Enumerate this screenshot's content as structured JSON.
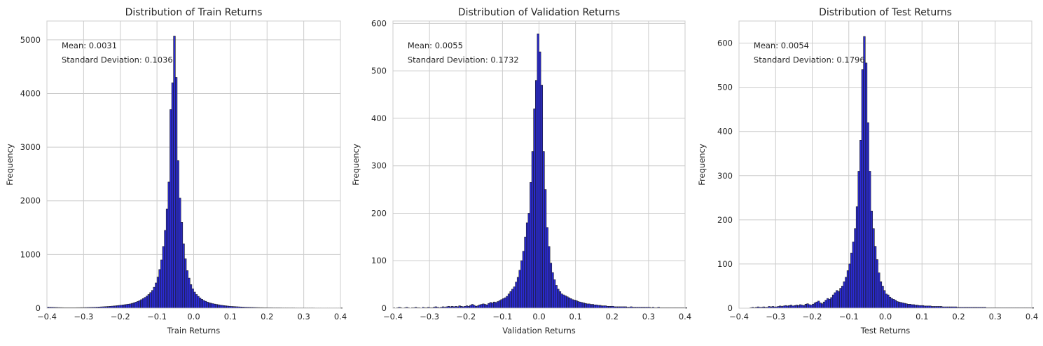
{
  "chart_data": [
    {
      "type": "bar",
      "title": "Distribution of Train Returns",
      "xlabel": "Train Returns",
      "ylabel": "Frequency",
      "xlim": [
        -0.4,
        0.4
      ],
      "ylim": [
        0,
        5350
      ],
      "xticks": [
        -0.4,
        -0.3,
        -0.2,
        -0.1,
        0.0,
        0.1,
        0.2,
        0.3,
        0.4
      ],
      "xtick_labels": [
        "−0.4",
        "−0.3",
        "−0.2",
        "−0.1",
        "0.0",
        "0.1",
        "0.2",
        "0.3",
        "0.4"
      ],
      "yticks": [
        0,
        1000,
        2000,
        3000,
        4000,
        5000
      ],
      "ytick_labels": [
        "0",
        "1000",
        "2000",
        "3000",
        "4000",
        "5000"
      ],
      "grid": true,
      "bar_color": "#2b2bd6",
      "edge_color": "#1a1a1a",
      "annotations": [
        "Mean: 0.0031",
        "Standard Deviation: 0.1036"
      ],
      "bins": {
        "start": -0.4,
        "width": 0.005
      },
      "values": [
        20,
        18,
        17,
        16,
        14,
        13,
        12,
        11,
        10,
        9,
        9,
        9,
        9,
        9,
        9,
        9,
        10,
        10,
        11,
        11,
        12,
        13,
        14,
        15,
        16,
        17,
        18,
        20,
        22,
        24,
        26,
        28,
        30,
        32,
        35,
        38,
        41,
        44,
        48,
        52,
        56,
        60,
        65,
        70,
        75,
        80,
        90,
        100,
        112,
        125,
        140,
        158,
        178,
        200,
        225,
        255,
        290,
        330,
        390,
        470,
        580,
        720,
        900,
        1150,
        1450,
        1850,
        2350,
        3700,
        4200,
        5070,
        4300,
        2750,
        2050,
        1600,
        1200,
        920,
        700,
        560,
        440,
        360,
        300,
        255,
        220,
        190,
        165,
        145,
        128,
        114,
        102,
        92,
        84,
        76,
        70,
        64,
        58,
        53,
        48,
        44,
        40,
        36,
        33,
        31,
        29,
        27,
        25,
        23,
        21,
        19,
        18,
        17,
        16,
        15,
        14,
        13,
        12,
        11,
        10,
        10,
        9,
        9,
        8,
        8,
        8,
        7,
        7,
        7,
        7,
        7,
        6,
        6,
        6,
        6,
        6,
        6,
        6,
        5,
        5,
        5,
        5,
        5,
        5,
        5,
        5,
        5,
        5,
        5,
        4,
        4,
        4,
        4,
        4,
        4,
        4,
        4,
        4,
        4,
        4,
        4,
        4,
        4,
        4
      ]
    },
    {
      "type": "bar",
      "title": "Distribution of Validation Returns",
      "xlabel": "Validation Returns",
      "ylabel": "Frequency",
      "xlim": [
        -0.4,
        0.4
      ],
      "ylim": [
        0,
        605
      ],
      "xticks": [
        -0.4,
        -0.3,
        -0.2,
        -0.1,
        0.0,
        0.1,
        0.2,
        0.3,
        0.4
      ],
      "xtick_labels": [
        "−0.4",
        "−0.3",
        "−0.2",
        "−0.1",
        "0.0",
        "0.1",
        "0.2",
        "0.3",
        "0.4"
      ],
      "yticks": [
        0,
        100,
        200,
        300,
        400,
        500,
        600
      ],
      "ytick_labels": [
        "0",
        "100",
        "200",
        "300",
        "400",
        "500",
        "600"
      ],
      "grid": true,
      "bar_color": "#2b2bd6",
      "edge_color": "#1a1a1a",
      "annotations": [
        "Mean: 0.0055",
        "Standard Deviation: 0.1732"
      ],
      "bins": {
        "start": -0.4,
        "width": 0.005
      },
      "values": [
        1,
        0,
        1,
        2,
        1,
        0,
        1,
        2,
        1,
        0,
        1,
        1,
        2,
        1,
        1,
        0,
        2,
        1,
        1,
        2,
        1,
        1,
        2,
        3,
        2,
        1,
        2,
        3,
        2,
        3,
        4,
        3,
        4,
        3,
        4,
        3,
        5,
        4,
        3,
        4,
        5,
        4,
        6,
        8,
        6,
        4,
        5,
        7,
        8,
        9,
        8,
        7,
        10,
        12,
        11,
        13,
        12,
        14,
        16,
        18,
        20,
        22,
        25,
        30,
        35,
        40,
        45,
        55,
        65,
        80,
        100,
        120,
        150,
        180,
        200,
        265,
        330,
        420,
        480,
        578,
        540,
        470,
        330,
        250,
        170,
        130,
        95,
        75,
        60,
        48,
        40,
        35,
        30,
        28,
        26,
        24,
        22,
        20,
        18,
        17,
        16,
        14,
        13,
        12,
        11,
        10,
        9,
        9,
        8,
        8,
        7,
        7,
        6,
        6,
        5,
        5,
        5,
        4,
        4,
        4,
        4,
        3,
        3,
        3,
        3,
        3,
        3,
        3,
        2,
        2,
        3,
        2,
        2,
        2,
        2,
        2,
        2,
        2,
        2,
        2,
        2,
        1,
        2,
        1,
        1,
        2,
        1,
        1,
        1,
        1,
        1,
        1,
        1,
        1,
        1,
        1,
        1,
        1,
        1,
        1,
        1
      ]
    },
    {
      "type": "bar",
      "title": "Distribution of Test Returns",
      "xlabel": "Test Returns",
      "ylabel": "Frequency",
      "xlim": [
        -0.4,
        0.4
      ],
      "ylim": [
        0,
        650
      ],
      "xticks": [
        -0.4,
        -0.3,
        -0.2,
        -0.1,
        0.0,
        0.1,
        0.2,
        0.3,
        0.4
      ],
      "xtick_labels": [
        "−0.4",
        "−0.3",
        "−0.2",
        "−0.1",
        "0.0",
        "0.1",
        "0.2",
        "0.3",
        "0.4"
      ],
      "yticks": [
        0,
        100,
        200,
        300,
        400,
        500,
        600
      ],
      "ytick_labels": [
        "0",
        "100",
        "200",
        "300",
        "400",
        "500",
        "600"
      ],
      "grid": true,
      "bar_color": "#2b2bd6",
      "edge_color": "#1a1a1a",
      "annotations": [
        "Mean: 0.0054",
        "Standard Deviation: 0.1796"
      ],
      "bins": {
        "start": -0.4,
        "width": 0.005
      },
      "values": [
        0,
        0,
        0,
        0,
        0,
        0,
        1,
        2,
        1,
        2,
        3,
        2,
        2,
        3,
        2,
        2,
        4,
        3,
        4,
        3,
        3,
        4,
        5,
        4,
        5,
        6,
        5,
        6,
        7,
        5,
        6,
        7,
        6,
        8,
        7,
        6,
        9,
        10,
        8,
        7,
        9,
        12,
        14,
        16,
        12,
        10,
        14,
        18,
        22,
        20,
        24,
        30,
        35,
        40,
        38,
        45,
        50,
        60,
        70,
        85,
        100,
        125,
        150,
        180,
        230,
        310,
        380,
        540,
        615,
        555,
        420,
        310,
        220,
        180,
        140,
        110,
        80,
        60,
        50,
        40,
        32,
        30,
        25,
        22,
        20,
        18,
        15,
        14,
        13,
        12,
        11,
        10,
        9,
        9,
        8,
        8,
        7,
        7,
        6,
        6,
        6,
        5,
        5,
        5,
        5,
        4,
        4,
        4,
        4,
        4,
        4,
        3,
        3,
        3,
        3,
        3,
        3,
        3,
        3,
        2,
        2,
        2,
        2,
        2,
        2,
        2,
        2,
        2,
        2,
        2,
        2,
        2,
        2,
        2,
        2,
        1,
        1,
        1,
        1,
        1,
        1,
        1,
        1,
        1,
        1,
        1,
        1,
        1,
        1,
        1,
        1,
        1,
        1,
        1,
        1,
        1,
        1,
        1,
        1,
        1,
        1
      ]
    }
  ]
}
